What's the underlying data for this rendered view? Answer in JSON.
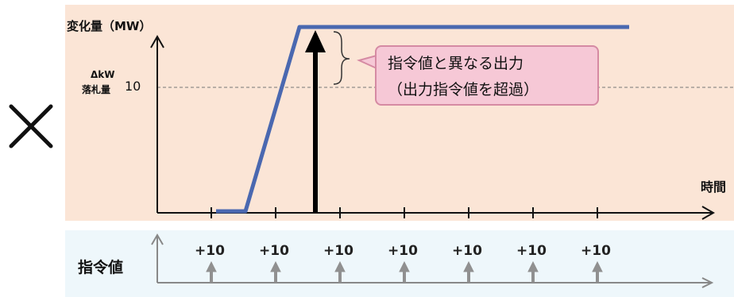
{
  "diagram": {
    "mark": "×",
    "y_axis_label": "変化量（MW）",
    "dkw_label": "ΔkW",
    "bid_label": "落札量",
    "threshold_value": "10",
    "x_axis_label": "時間",
    "callout": {
      "line1": "指令値と異なる出力",
      "line2": "（出力指令値を超過）"
    },
    "command_row_label": "指令値",
    "commands": [
      "+10",
      "+10",
      "+10",
      "+10",
      "+10",
      "+10",
      "+10"
    ],
    "colors": {
      "panel_top": "#fbe5d6",
      "panel_bottom": "#eef7fb",
      "output_line": "#4a68b0",
      "callout_fill": "#f6c8d6",
      "callout_border": "#d58aa3",
      "command_arrow": "#909090"
    }
  }
}
